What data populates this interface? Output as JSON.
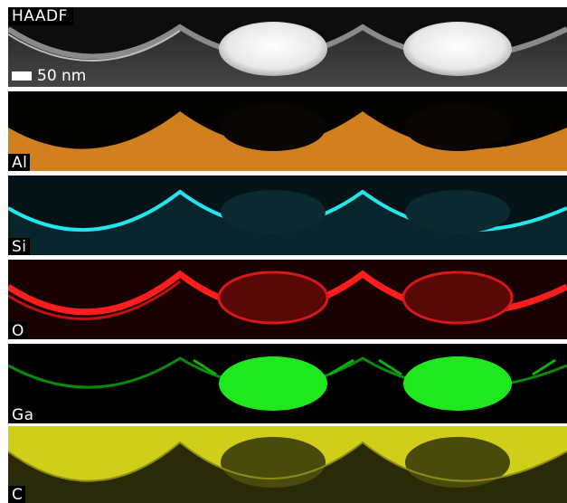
{
  "panels": [
    {
      "id": "haadf",
      "label": "HAADF",
      "label_position": "top",
      "background": "#3a3a3a",
      "color": "#f2f2f2"
    },
    {
      "id": "al",
      "label": "Al",
      "label_position": "bottom",
      "background": "#000000",
      "color": "#d98a2a"
    },
    {
      "id": "si",
      "label": "Si",
      "label_position": "bottom",
      "background": "#031a20",
      "color": "#20dfe8"
    },
    {
      "id": "o",
      "label": "O",
      "label_position": "bottom",
      "background": "#140202",
      "color": "#ff2020"
    },
    {
      "id": "ga",
      "label": "Ga",
      "label_position": "bottom",
      "background": "#000000",
      "color": "#1ee81e"
    },
    {
      "id": "c",
      "label": "C",
      "label_position": "bottom",
      "background": "#1a1a00",
      "color": "#d8d820"
    }
  ],
  "scalebar": {
    "label": "50 nm"
  }
}
